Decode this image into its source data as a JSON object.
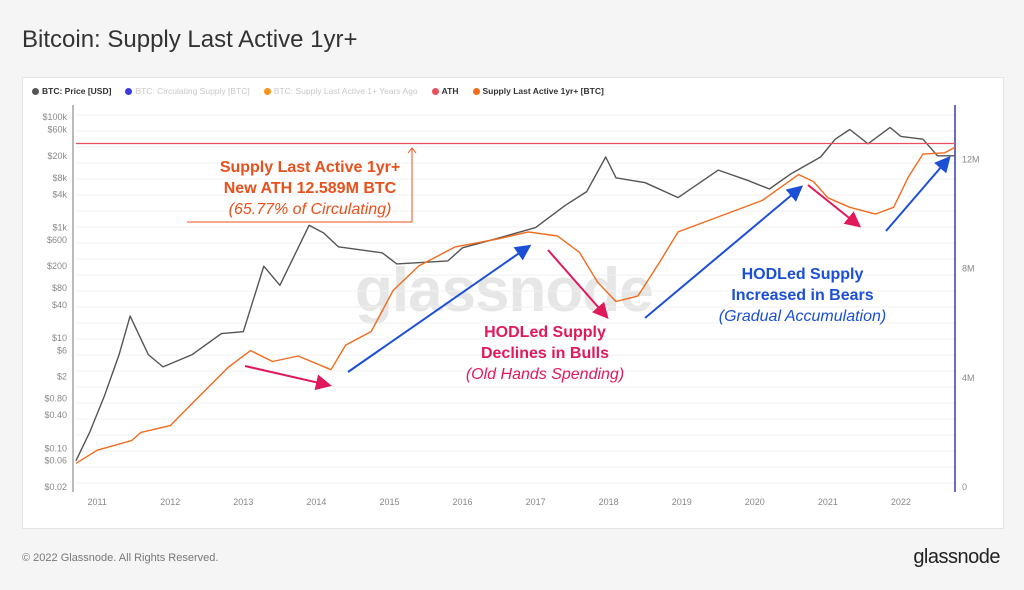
{
  "title": "Bitcoin: Supply Last Active 1yr+",
  "legend": [
    {
      "label": "BTC: Price [USD]",
      "color": "#555555",
      "active": true
    },
    {
      "label": "BTC: Circulating Supply [BTC]",
      "color": "#3a3ae0",
      "active": false
    },
    {
      "label": "BTC: Supply Last Active 1+ Years Ago",
      "color": "#f7931a",
      "active": false
    },
    {
      "label": "ATH",
      "color": "#e8505b",
      "active": true
    },
    {
      "label": "Supply Last Active 1yr+ [BTC]",
      "color": "#f26b1d",
      "active": true
    }
  ],
  "annotations": {
    "ath": {
      "line1": "Supply Last Active 1yr+",
      "line2": "New ATH 12.589M BTC",
      "line3": "(65.77% of Circulating)",
      "color": "#e8501c"
    },
    "bulls": {
      "line1": "HODLed Supply",
      "line2": "Declines in Bulls",
      "line3": "(Old Hands Spending)",
      "color": "#e0195a"
    },
    "bears": {
      "line1": "HODLed Supply",
      "line2": "Increased in Bears",
      "line3": "(Gradual Accumulation)",
      "color": "#1a4fd6"
    }
  },
  "watermark": "glassnode",
  "footer": "© 2022 Glassnode. All Rights Reserved.",
  "logo": "glassnode",
  "chart_data": {
    "type": "line",
    "x_ticks": [
      "2011",
      "2012",
      "2013",
      "2014",
      "2015",
      "2016",
      "2017",
      "2018",
      "2019",
      "2020",
      "2021",
      "2022"
    ],
    "xlim": [
      2010.71,
      2022.74
    ],
    "left_axis": {
      "scale": "log",
      "ylim": [
        0.02,
        140000
      ],
      "ticks": [
        "$100k",
        "$60k",
        "$20k",
        "$8k",
        "$4k",
        "$1k",
        "$600",
        "$200",
        "$80",
        "$40",
        "$10",
        "$6",
        "$2",
        "$0.80",
        "$0.40",
        "$0.10",
        "$0.06",
        "$0.02"
      ],
      "tick_values": [
        100000,
        60000,
        20000,
        8000,
        4000,
        1000,
        600,
        200,
        80,
        40,
        10,
        6,
        2,
        0.8,
        0.4,
        0.1,
        0.06,
        0.02
      ]
    },
    "right_axis": {
      "scale": "linear",
      "ylim": [
        0,
        14
      ],
      "ticks": [
        "0",
        "4M",
        "8M",
        "12M"
      ],
      "tick_values": [
        0,
        4,
        8,
        12
      ],
      "unit": "M BTC"
    },
    "grid": true,
    "legend_position": "top-left",
    "series": [
      {
        "name": "BTC: Price [USD]",
        "axis": "left",
        "color": "#555555",
        "x": [
          2010.71,
          2010.9,
          2011.1,
          2011.3,
          2011.45,
          2011.7,
          2011.9,
          2012.3,
          2012.7,
          2013.0,
          2013.28,
          2013.5,
          2013.9,
          2014.1,
          2014.3,
          2014.9,
          2015.1,
          2015.8,
          2016.0,
          2016.5,
          2017.0,
          2017.4,
          2017.7,
          2017.96,
          2018.1,
          2018.5,
          2018.95,
          2019.5,
          2019.9,
          2020.2,
          2020.5,
          2020.9,
          2021.1,
          2021.3,
          2021.55,
          2021.85,
          2022.0,
          2022.3,
          2022.5,
          2022.74
        ],
        "y": [
          0.06,
          0.2,
          0.9,
          5,
          25,
          5,
          3,
          5,
          12,
          13,
          200,
          90,
          1100,
          800,
          450,
          350,
          220,
          250,
          430,
          650,
          1000,
          2500,
          4500,
          19000,
          8000,
          6500,
          3500,
          11000,
          7200,
          5000,
          9500,
          19000,
          40000,
          60000,
          33000,
          65000,
          45000,
          40000,
          20000,
          20000
        ]
      },
      {
        "name": "ATH",
        "axis": "right",
        "color": "#e8505b",
        "x": [
          2010.71,
          2022.74
        ],
        "y": [
          12.589,
          12.589
        ]
      },
      {
        "name": "Supply Last Active 1yr+ [BTC]",
        "axis": "right",
        "color": "#f26b1d",
        "x": [
          2010.71,
          2011.0,
          2011.47,
          2011.6,
          2012.0,
          2012.35,
          2012.8,
          2013.1,
          2013.4,
          2013.75,
          2014.2,
          2014.4,
          2014.75,
          2015.05,
          2015.4,
          2015.9,
          2016.5,
          2016.9,
          2017.3,
          2017.6,
          2017.85,
          2018.1,
          2018.4,
          2018.7,
          2018.95,
          2019.5,
          2020.1,
          2020.6,
          2020.8,
          2021.0,
          2021.3,
          2021.65,
          2021.9,
          2022.1,
          2022.3,
          2022.6,
          2022.74
        ],
        "y": [
          0.87,
          1.35,
          1.7,
          2.0,
          2.25,
          3.2,
          4.4,
          5.0,
          4.6,
          4.8,
          4.3,
          5.2,
          5.7,
          7.2,
          8.1,
          8.8,
          9.1,
          9.35,
          9.2,
          8.6,
          7.5,
          6.8,
          7.0,
          8.25,
          9.35,
          9.9,
          10.5,
          11.45,
          11.2,
          10.6,
          10.25,
          10.0,
          10.25,
          11.35,
          12.2,
          12.25,
          12.45
        ]
      }
    ]
  }
}
